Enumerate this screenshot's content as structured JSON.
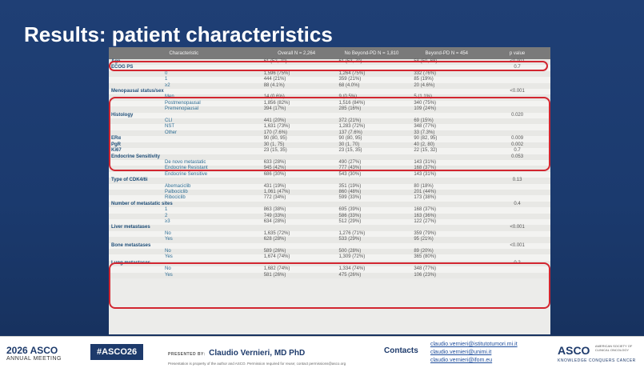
{
  "slide": {
    "title": "Results: patient characteristics",
    "columns": [
      "Characteristic",
      "Overall N = 2,264",
      "No Beyond-PD  N = 1,810",
      "Beyond-PD  N = 454",
      "p value"
    ],
    "rows": [
      {
        "type": "cat",
        "label": "Age",
        "overall": "61 (52, 70)",
        "no_bpd": "61 (53, 70)",
        "bpd": "58 (50, 68)",
        "p": "<0.001"
      },
      {
        "type": "cat",
        "label": "ECOG PS",
        "overall": "",
        "no_bpd": "",
        "bpd": "",
        "p": "0.7"
      },
      {
        "type": "sub",
        "label": "0",
        "overall": "1,596 (75%)",
        "no_bpd": "1,264 (75%)",
        "bpd": "332 (76%)",
        "p": ""
      },
      {
        "type": "sub",
        "label": "1",
        "overall": "444 (21%)",
        "no_bpd": "359 (21%)",
        "bpd": "85 (19%)",
        "p": ""
      },
      {
        "type": "sub",
        "label": "≥2",
        "overall": "88 (4.1%)",
        "no_bpd": "68 (4.0%)",
        "bpd": "20 (4.6%)",
        "p": ""
      },
      {
        "type": "cat",
        "label": "Menopausal status/sex",
        "overall": "",
        "no_bpd": "",
        "bpd": "",
        "p": "<0.001"
      },
      {
        "type": "sub",
        "label": "Men",
        "overall": "14 (0.6%)",
        "no_bpd": "9 (0.5%)",
        "bpd": "5 (1.1%)",
        "p": ""
      },
      {
        "type": "sub",
        "label": "Postmenopausal",
        "overall": "1,856 (82%)",
        "no_bpd": "1,516 (84%)",
        "bpd": "340 (75%)",
        "p": ""
      },
      {
        "type": "sub",
        "label": "Premenopausal",
        "overall": "394 (17%)",
        "no_bpd": "285 (16%)",
        "bpd": "109 (24%)",
        "p": ""
      },
      {
        "type": "cat",
        "label": "Histology",
        "overall": "",
        "no_bpd": "",
        "bpd": "",
        "p": "0.020"
      },
      {
        "type": "sub",
        "label": "CLI",
        "overall": "441 (20%)",
        "no_bpd": "372 (21%)",
        "bpd": "69 (15%)",
        "p": ""
      },
      {
        "type": "sub",
        "label": "NST",
        "overall": "1,631 (73%)",
        "no_bpd": "1,283 (72%)",
        "bpd": "348 (77%)",
        "p": ""
      },
      {
        "type": "sub",
        "label": "Other",
        "overall": "170 (7.6%)",
        "no_bpd": "137 (7.6%)",
        "bpd": "33 (7.3%)",
        "p": ""
      },
      {
        "type": "cat",
        "label": "ERα",
        "overall": "90 (80, 95)",
        "no_bpd": "90 (80, 95)",
        "bpd": "90 (82, 95)",
        "p": "0.009"
      },
      {
        "type": "cat",
        "label": "PgR",
        "overall": "30 (1, 75)",
        "no_bpd": "30 (1, 70)",
        "bpd": "40 (2, 80)",
        "p": "0.002"
      },
      {
        "type": "cat",
        "label": "Ki67",
        "overall": "23 (15, 35)",
        "no_bpd": "23 (15, 35)",
        "bpd": "22 (15, 32)",
        "p": "0.7"
      },
      {
        "type": "cat",
        "label": "Endocrine Sensitivity",
        "overall": "",
        "no_bpd": "",
        "bpd": "",
        "p": "0.053"
      },
      {
        "type": "sub",
        "label": "De novo metastatic",
        "overall": "633 (28%)",
        "no_bpd": "490 (27%)",
        "bpd": "143 (31%)",
        "p": ""
      },
      {
        "type": "sub",
        "label": "Endocrine Resistant",
        "overall": "945 (42%)",
        "no_bpd": "777 (43%)",
        "bpd": "168 (37%)",
        "p": ""
      },
      {
        "type": "sub",
        "label": "Endocrine Sensitive",
        "overall": "686 (30%)",
        "no_bpd": "543 (30%)",
        "bpd": "143 (31%)",
        "p": ""
      },
      {
        "type": "cat",
        "label": "Type of CDK4/6i",
        "overall": "",
        "no_bpd": "",
        "bpd": "",
        "p": "0.13"
      },
      {
        "type": "sub",
        "label": "Abemaciclib",
        "overall": "431 (19%)",
        "no_bpd": "351 (19%)",
        "bpd": "80 (18%)",
        "p": ""
      },
      {
        "type": "sub",
        "label": "Palbociclib",
        "overall": "1,061 (47%)",
        "no_bpd": "860 (48%)",
        "bpd": "201 (44%)",
        "p": ""
      },
      {
        "type": "sub",
        "label": "Ribociclib",
        "overall": "772 (34%)",
        "no_bpd": "599 (33%)",
        "bpd": "173 (38%)",
        "p": ""
      },
      {
        "type": "cat",
        "label": "Number of metastatic sites",
        "overall": "",
        "no_bpd": "",
        "bpd": "",
        "p": "0.4"
      },
      {
        "type": "sub",
        "label": "1",
        "overall": "863 (38%)",
        "no_bpd": "695 (39%)",
        "bpd": "168 (37%)",
        "p": ""
      },
      {
        "type": "sub",
        "label": "2",
        "overall": "749 (33%)",
        "no_bpd": "586 (33%)",
        "bpd": "163 (36%)",
        "p": ""
      },
      {
        "type": "sub",
        "label": "≥3",
        "overall": "634 (28%)",
        "no_bpd": "512 (29%)",
        "bpd": "122 (27%)",
        "p": ""
      },
      {
        "type": "cat",
        "label": "Liver metastases",
        "overall": "",
        "no_bpd": "",
        "bpd": "",
        "p": "<0.001"
      },
      {
        "type": "sub",
        "label": "No",
        "overall": "1,635 (72%)",
        "no_bpd": "1,276 (71%)",
        "bpd": "359 (79%)",
        "p": ""
      },
      {
        "type": "sub",
        "label": "Yes",
        "overall": "628 (28%)",
        "no_bpd": "533 (29%)",
        "bpd": "95 (21%)",
        "p": ""
      },
      {
        "type": "cat",
        "label": "Bone metastases",
        "overall": "",
        "no_bpd": "",
        "bpd": "",
        "p": "<0.001"
      },
      {
        "type": "sub",
        "label": "No",
        "overall": "589 (26%)",
        "no_bpd": "500 (28%)",
        "bpd": "89 (20%)",
        "p": ""
      },
      {
        "type": "sub",
        "label": "Yes",
        "overall": "1,674 (74%)",
        "no_bpd": "1,309 (72%)",
        "bpd": "365 (80%)",
        "p": ""
      },
      {
        "type": "cat",
        "label": "Lung metastases",
        "overall": "",
        "no_bpd": "",
        "bpd": "",
        "p": "0.2"
      },
      {
        "type": "sub",
        "label": "No",
        "overall": "1,682 (74%)",
        "no_bpd": "1,334 (74%)",
        "bpd": "348 (77%)",
        "p": ""
      },
      {
        "type": "sub",
        "label": "Yes",
        "overall": "581 (26%)",
        "no_bpd": "475 (26%)",
        "bpd": "106 (23%)",
        "p": ""
      }
    ]
  },
  "footer": {
    "asco_year": "2026 ASCO",
    "asco_sub": "ANNUAL MEETING",
    "hashtag": "#ASCO26",
    "presented_by": "PRESENTED BY:",
    "presenter": "Claudio Vernieri, MD PhD",
    "note": "Presentation is property of the author and ASCO. Permission required for reuse; contact permissions@asco.org",
    "contacts_label": "Contacts",
    "emails": [
      "claudio.vernieri@istitutotumori.mi.it",
      "claudio.vernieri@unimi.it",
      "claudio.vernieri@ifom.eu"
    ],
    "asco_logo": "ASCO",
    "asco_society": "AMERICAN SOCIETY OF CLINICAL ONCOLOGY",
    "asco_tagline": "KNOWLEDGE CONQUERS CANCER"
  },
  "colors": {
    "highlight": "#d22630",
    "slide_bg": "#1d3a6b",
    "category_text": "#1f4e78"
  }
}
